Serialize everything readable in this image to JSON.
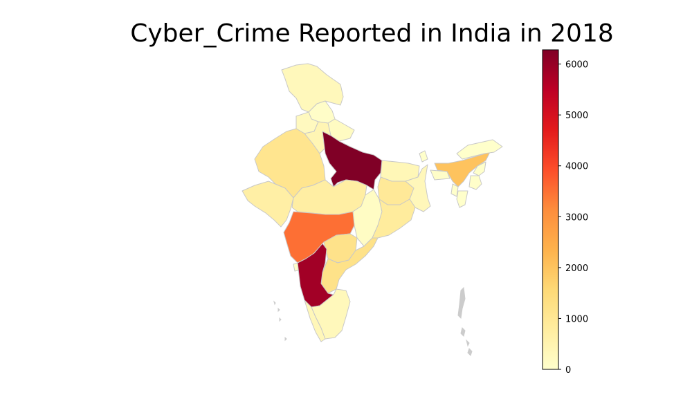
{
  "title": "Cyber_Crime Reported in India in 2018",
  "colorbar": {
    "cmap": [
      "#ffffcc",
      "#ffeda0",
      "#fed976",
      "#feb24c",
      "#fd8d3c",
      "#fc4e2a",
      "#e31a1c",
      "#bd0026",
      "#800026"
    ],
    "min": 0,
    "max": 6280,
    "ticks": [
      0,
      1000,
      2000,
      3000,
      4000,
      5000,
      6000
    ],
    "tick_labels": [
      "0",
      "1000",
      "2000",
      "3000",
      "4000",
      "5000",
      "6000"
    ]
  },
  "chart_data": {
    "type": "choropleth",
    "regions": [
      {
        "id": "jammu-kashmir",
        "value": 300
      },
      {
        "id": "himachal",
        "value": 70
      },
      {
        "id": "punjab",
        "value": 240
      },
      {
        "id": "haryana",
        "value": 420
      },
      {
        "id": "uttarakhand",
        "value": 170
      },
      {
        "id": "rajasthan",
        "value": 1100
      },
      {
        "id": "uttar-pradesh",
        "value": 6280
      },
      {
        "id": "gujarat",
        "value": 700
      },
      {
        "id": "madhya-pradesh",
        "value": 740
      },
      {
        "id": "bihar",
        "value": 370
      },
      {
        "id": "jharkhand",
        "value": 930
      },
      {
        "id": "west-bengal",
        "value": 330
      },
      {
        "id": "chhattisgarh",
        "value": 140
      },
      {
        "id": "odisha",
        "value": 840
      },
      {
        "id": "maharashtra",
        "value": 3510
      },
      {
        "id": "telangana",
        "value": 1200
      },
      {
        "id": "andhra-pradesh",
        "value": 1210
      },
      {
        "id": "karnataka",
        "value": 5840
      },
      {
        "id": "tamil-nadu",
        "value": 300
      },
      {
        "id": "kerala",
        "value": 340
      },
      {
        "id": "assam",
        "value": 2020
      },
      {
        "id": "arunachal",
        "value": 10
      },
      {
        "id": "nagaland",
        "value": 10
      },
      {
        "id": "manipur",
        "value": 30
      },
      {
        "id": "mizoram",
        "value": 10
      },
      {
        "id": "tripura",
        "value": 20
      },
      {
        "id": "meghalaya",
        "value": 70
      },
      {
        "id": "sikkim",
        "value": 10
      },
      {
        "id": "goa",
        "value": 30
      }
    ]
  }
}
